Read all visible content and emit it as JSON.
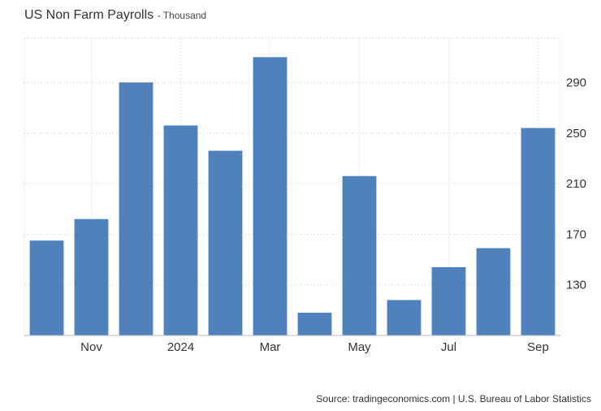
{
  "chart_data": {
    "type": "bar",
    "title": "US Non Farm Payrolls",
    "subtitle": "- Thousand",
    "categories": [
      "2023-10",
      "2023-11",
      "2023-12",
      "2024-01",
      "2024-02",
      "2024-03",
      "2024-04",
      "2024-05",
      "2024-06",
      "2024-07",
      "2024-08",
      "2024-09"
    ],
    "x_tick_labels": [
      {
        "index": 1,
        "label": "Nov"
      },
      {
        "index": 3,
        "label": "2024"
      },
      {
        "index": 5,
        "label": "Mar"
      },
      {
        "index": 7,
        "label": "May"
      },
      {
        "index": 9,
        "label": "Jul"
      },
      {
        "index": 11,
        "label": "Sep"
      }
    ],
    "series": [
      {
        "values": [
          165,
          182,
          290,
          256,
          236,
          310,
          108,
          216,
          118,
          144,
          159,
          254
        ]
      }
    ],
    "ylim": [
      90,
      325
    ],
    "yticks": [
      130,
      170,
      210,
      250,
      290
    ],
    "y_axis_side": "right",
    "grid": true,
    "bar_color": "#4f81bd"
  },
  "source": "Source: tradingeconomics.com | U.S. Bureau of Labor Statistics"
}
